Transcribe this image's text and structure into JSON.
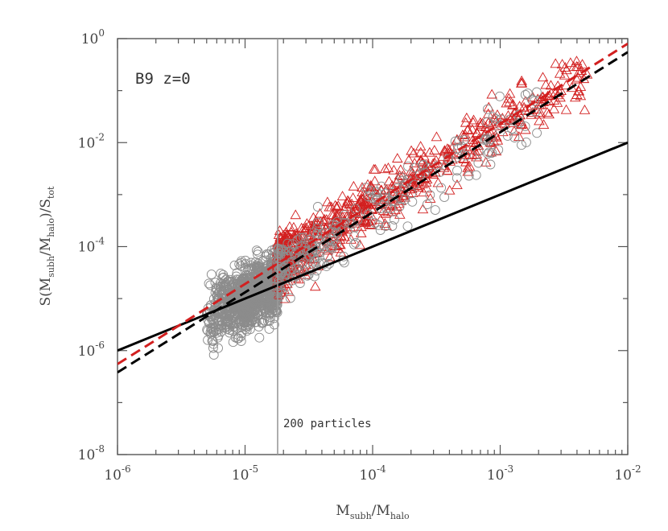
{
  "chart_data": {
    "type": "scatter",
    "scale": "log-log",
    "xlim": [
      1e-06,
      0.01
    ],
    "ylim": [
      1e-08,
      1
    ],
    "xlabel": {
      "base": "M",
      "sub1": "subh",
      "mid": "/M",
      "sub2": "halo"
    },
    "ylabel": {
      "p1": "S(M",
      "sub1": "subh",
      "p2": "/M",
      "sub2": "halo",
      "p3": ")/S",
      "sub3": "tot"
    },
    "x_ticks": [
      {
        "value": 1e-06,
        "base": "10",
        "exp": "-6"
      },
      {
        "value": 1e-05,
        "base": "10",
        "exp": "-5"
      },
      {
        "value": 0.0001,
        "base": "10",
        "exp": "-4"
      },
      {
        "value": 0.001,
        "base": "10",
        "exp": "-3"
      },
      {
        "value": 0.01,
        "base": "10",
        "exp": "-2"
      }
    ],
    "y_ticks": [
      {
        "value": 1e-08,
        "base": "10",
        "exp": "-8"
      },
      {
        "value": 1e-06,
        "base": "10",
        "exp": "-6"
      },
      {
        "value": 0.0001,
        "base": "10",
        "exp": "-4"
      },
      {
        "value": 0.01,
        "base": "10",
        "exp": "-2"
      },
      {
        "value": 1,
        "base": "10",
        "exp": "0"
      }
    ],
    "annotations": {
      "label": "B9 z=0",
      "threshold_label": "200 particles",
      "threshold_x": 1.8e-05
    },
    "colors": {
      "grey": "#8c8c8c",
      "red": "#d21f1f",
      "black": "#000000",
      "threshold": "#9a9a9a"
    },
    "lines": [
      {
        "name": "solid-black-fit",
        "style": "solid",
        "color": "#000000",
        "points": [
          [
            1e-06,
            1e-06
          ],
          [
            0.01,
            0.01
          ]
        ]
      },
      {
        "name": "dashed-red-fit",
        "style": "dashed",
        "color": "#d21f1f",
        "points": [
          [
            1e-06,
            5.5e-07
          ],
          [
            0.01,
            0.8
          ]
        ]
      },
      {
        "name": "dashed-black-fit",
        "style": "dashed",
        "color": "#000000",
        "points": [
          [
            1e-06,
            3.8e-07
          ],
          [
            0.01,
            0.55
          ]
        ]
      }
    ],
    "series": [
      {
        "name": "below 200 particles",
        "marker": "circle",
        "color": "#8c8c8c",
        "x_range": [
          4e-06,
          1.8e-05
        ],
        "trend": "solid-black-fit",
        "count": 950
      },
      {
        "name": "above 200 particles",
        "marker": "triangle",
        "color": "#d21f1f",
        "x_range": [
          1.8e-05,
          0.005
        ],
        "trend": "dashed-red-fit",
        "count": 750
      },
      {
        "name": "above 200 particles (circles)",
        "marker": "circle",
        "color": "#8c8c8c",
        "x_range": [
          1.8e-05,
          0.002
        ],
        "trend": "dashed-black-fit",
        "count": 260
      }
    ]
  }
}
